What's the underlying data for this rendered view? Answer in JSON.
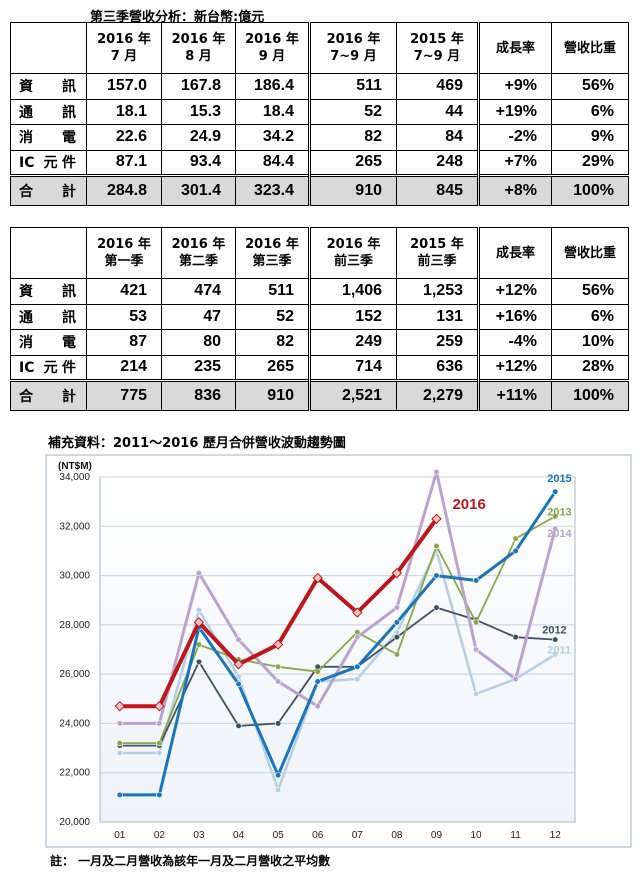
{
  "caption1": "第三季營收分析：新台幣:億元",
  "table1": {
    "headers": [
      [
        "2016 年",
        "7 月"
      ],
      [
        "2016 年",
        "8 月"
      ],
      [
        "2016 年",
        "9 月"
      ],
      [
        "2016 年",
        "7~9 月"
      ],
      [
        "2015 年",
        "7~9 月"
      ],
      [
        "成長率"
      ],
      [
        "營收比重"
      ]
    ],
    "rows": [
      {
        "label": "資訊",
        "values": [
          "157.0",
          "167.8",
          "186.4",
          "511",
          "469",
          "+9%",
          "56%"
        ]
      },
      {
        "label": "通訊",
        "values": [
          "18.1",
          "15.3",
          "18.4",
          "52",
          "44",
          "+19%",
          "6%"
        ]
      },
      {
        "label": "消電",
        "values": [
          "22.6",
          "24.9",
          "34.2",
          "82",
          "84",
          "-2%",
          "9%"
        ]
      },
      {
        "label": "IC 元件",
        "values": [
          "87.1",
          "93.4",
          "84.4",
          "265",
          "248",
          "+7%",
          "29%"
        ]
      }
    ],
    "total": {
      "label": "合計",
      "values": [
        "284.8",
        "301.4",
        "323.4",
        "910",
        "845",
        "+8%",
        "100%"
      ]
    }
  },
  "table2": {
    "headers": [
      [
        "2016 年",
        "第一季"
      ],
      [
        "2016 年",
        "第二季"
      ],
      [
        "2016 年",
        "第三季"
      ],
      [
        "2016 年",
        "前三季"
      ],
      [
        "2015 年",
        "前三季"
      ],
      [
        "成長率"
      ],
      [
        "營收比重"
      ]
    ],
    "rows": [
      {
        "label": "資訊",
        "values": [
          "421",
          "474",
          "511",
          "1,406",
          "1,253",
          "+12%",
          "56%"
        ]
      },
      {
        "label": "通訊",
        "values": [
          "53",
          "47",
          "52",
          "152",
          "131",
          "+16%",
          "6%"
        ]
      },
      {
        "label": "消電",
        "values": [
          "87",
          "80",
          "82",
          "249",
          "259",
          "-4%",
          "10%"
        ]
      },
      {
        "label": "IC 元件",
        "values": [
          "214",
          "235",
          "265",
          "714",
          "636",
          "+12%",
          "28%"
        ]
      }
    ],
    "total": {
      "label": "合計",
      "values": [
        "775",
        "836",
        "910",
        "2,521",
        "2,279",
        "+11%",
        "100%"
      ]
    }
  },
  "caption2": "補充資料：2011～2016 歷月合併營收波動趨勢圖",
  "footnote": "註： 一月及二月營收為該年一月及二月營收之平均數",
  "chart_data": {
    "type": "line",
    "title": "",
    "ylabel": "(NT$M)",
    "xlabel": "",
    "categories": [
      "01",
      "02",
      "03",
      "04",
      "05",
      "06",
      "07",
      "08",
      "09",
      "10",
      "11",
      "12"
    ],
    "ylim": [
      20000,
      34000
    ],
    "yticks": [
      20000,
      22000,
      24000,
      26000,
      28000,
      30000,
      32000,
      34000
    ],
    "ytick_labels": [
      "20,000",
      "22,000",
      "24,000",
      "26,000",
      "28,000",
      "30,000",
      "32,000",
      "34,000"
    ],
    "grid": true,
    "series": [
      {
        "name": "2011",
        "color": "#b4cfe6",
        "marker": "circle",
        "width": 2.5,
        "values": [
          22800,
          22800,
          28600,
          25900,
          21300,
          25700,
          25800,
          27700,
          31000,
          25200,
          25800,
          26800
        ]
      },
      {
        "name": "2012",
        "color": "#3d5266",
        "marker": "circle",
        "width": 1.8,
        "values": [
          23100,
          23100,
          26500,
          23900,
          24000,
          26300,
          26300,
          27500,
          28700,
          28200,
          27500,
          27400
        ]
      },
      {
        "name": "2013",
        "color": "#88a843",
        "marker": "circle",
        "width": 1.8,
        "values": [
          23200,
          23200,
          27200,
          26600,
          26300,
          26100,
          27700,
          26800,
          31200,
          28100,
          31500,
          32400
        ]
      },
      {
        "name": "2014",
        "color": "#b9a3cf",
        "marker": "circle",
        "width": 3,
        "values": [
          24000,
          24000,
          30100,
          27400,
          25700,
          24700,
          27500,
          28700,
          34200,
          27000,
          25800,
          31900
        ]
      },
      {
        "name": "2015",
        "color": "#1a75bc",
        "marker": "circle",
        "width": 3,
        "values": [
          21100,
          21100,
          27900,
          25600,
          21900,
          25700,
          26300,
          28100,
          30000,
          29800,
          31000,
          33400
        ]
      },
      {
        "name": "2016",
        "color": "#c0161b",
        "marker": "diamond",
        "width": 4,
        "values": [
          24700,
          24700,
          28100,
          26400,
          27200,
          29900,
          28500,
          30100,
          32300,
          null,
          null,
          null
        ]
      }
    ]
  }
}
